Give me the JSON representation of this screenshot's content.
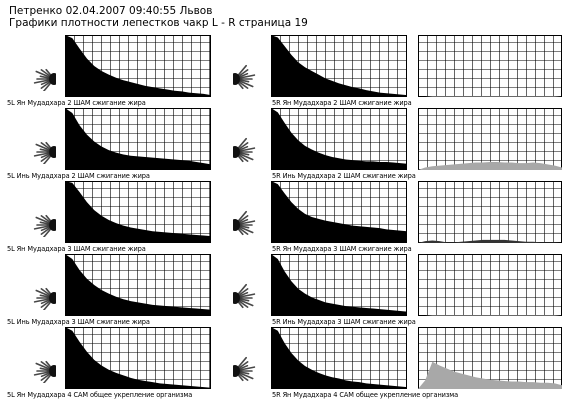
{
  "header": {
    "line1": "Петренко 02.04.2007 09:40:55 Львов",
    "line2": "Графики плотности лепестков чакр L - R страница 19"
  },
  "colors": {
    "ink": "#000000",
    "grid": "#000000",
    "overlay": "#a8a8a8",
    "background": "#ffffff"
  },
  "chart_data": [
    {
      "type": "area",
      "side": "L",
      "caption": "5L Ян Мудадхара 2 ШАМ сжигание жира",
      "values": [
        100,
        95,
        78,
        62,
        50,
        42,
        36,
        31,
        27,
        24,
        21,
        18,
        16,
        14,
        12,
        10,
        9,
        7,
        6,
        5,
        3
      ]
    },
    {
      "type": "area",
      "side": "R",
      "caption": "5R Ян Мудадхара 2 ШАМ сжигание жира",
      "values": [
        100,
        96,
        82,
        68,
        56,
        48,
        42,
        36,
        30,
        26,
        22,
        19,
        16,
        14,
        11,
        9,
        7,
        6,
        5,
        4,
        3
      ],
      "overlay_values": [
        0,
        0,
        1,
        1,
        1,
        1,
        1,
        1,
        1,
        1,
        1,
        1,
        1,
        1,
        1,
        1,
        1,
        1,
        1,
        1,
        0
      ]
    },
    {
      "type": "area",
      "side": "L",
      "caption": "5L Инь Мудадхара 2 ШАМ сжигание жира",
      "values": [
        100,
        92,
        72,
        57,
        46,
        38,
        32,
        28,
        25,
        23,
        22,
        21,
        20,
        19,
        18,
        17,
        16,
        15,
        13,
        11,
        9
      ]
    },
    {
      "type": "area",
      "side": "R",
      "caption": "5R Инь Мудадхара 2 ШАМ сжигание жира",
      "values": [
        100,
        93,
        76,
        60,
        48,
        39,
        33,
        28,
        24,
        21,
        19,
        17,
        16,
        15,
        14,
        14,
        13,
        13,
        12,
        11,
        10
      ],
      "overlay_values": [
        0,
        4,
        6,
        7,
        8,
        9,
        10,
        11,
        12,
        12,
        13,
        13,
        12,
        12,
        11,
        11,
        12,
        11,
        9,
        7,
        4
      ]
    },
    {
      "type": "area",
      "side": "L",
      "caption": "5L Ян Мудадхара 3 ШАМ сжигание жира",
      "values": [
        100,
        97,
        82,
        66,
        53,
        44,
        37,
        32,
        28,
        25,
        23,
        21,
        19,
        18,
        17,
        16,
        15,
        14,
        13,
        12,
        11
      ]
    },
    {
      "type": "area",
      "side": "R",
      "caption": "5R Ян Мудадхара 3 ШАМ сжигание жира",
      "values": [
        100,
        95,
        80,
        66,
        55,
        47,
        42,
        39,
        36,
        34,
        32,
        30,
        28,
        27,
        26,
        25,
        24,
        22,
        21,
        20,
        19
      ],
      "overlay_values": [
        0,
        3,
        4,
        3,
        1,
        1,
        2,
        3,
        4,
        5,
        5,
        5,
        5,
        4,
        3,
        2,
        2,
        1,
        1,
        1,
        0
      ]
    },
    {
      "type": "area",
      "side": "L",
      "caption": "5L Инь Мудадхара 3 ШАМ сжигание жира",
      "values": [
        100,
        92,
        74,
        60,
        50,
        42,
        36,
        31,
        27,
        24,
        22,
        20,
        18,
        17,
        16,
        15,
        14,
        13,
        12,
        11,
        10
      ]
    },
    {
      "type": "area",
      "side": "R",
      "caption": "5R Инь Мудадхара 3 ШАМ сжигание жира",
      "values": [
        100,
        92,
        72,
        56,
        44,
        36,
        30,
        26,
        22,
        20,
        18,
        16,
        15,
        14,
        13,
        12,
        11,
        10,
        9,
        8,
        7
      ],
      "overlay_values": [
        0,
        0,
        1,
        1,
        1,
        1,
        1,
        1,
        1,
        1,
        1,
        1,
        1,
        1,
        1,
        1,
        1,
        1,
        1,
        1,
        0
      ]
    },
    {
      "type": "area",
      "side": "L",
      "caption": "5L Ян Мудадхара 4 САМ общее укрепление организма",
      "values": [
        100,
        94,
        76,
        60,
        47,
        38,
        31,
        26,
        22,
        18,
        15,
        13,
        11,
        9,
        8,
        7,
        6,
        5,
        4,
        3,
        2
      ]
    },
    {
      "type": "area",
      "side": "R",
      "caption": "5R Ян Мудадхара 4 САМ общее укрепление организма",
      "values": [
        100,
        94,
        74,
        58,
        46,
        37,
        31,
        26,
        22,
        19,
        17,
        14,
        12,
        11,
        9,
        8,
        7,
        6,
        5,
        4,
        3
      ],
      "overlay_values": [
        0,
        14,
        44,
        38,
        33,
        28,
        25,
        22,
        19,
        17,
        15,
        14,
        13,
        12,
        12,
        11,
        11,
        10,
        10,
        9,
        6
      ]
    }
  ]
}
